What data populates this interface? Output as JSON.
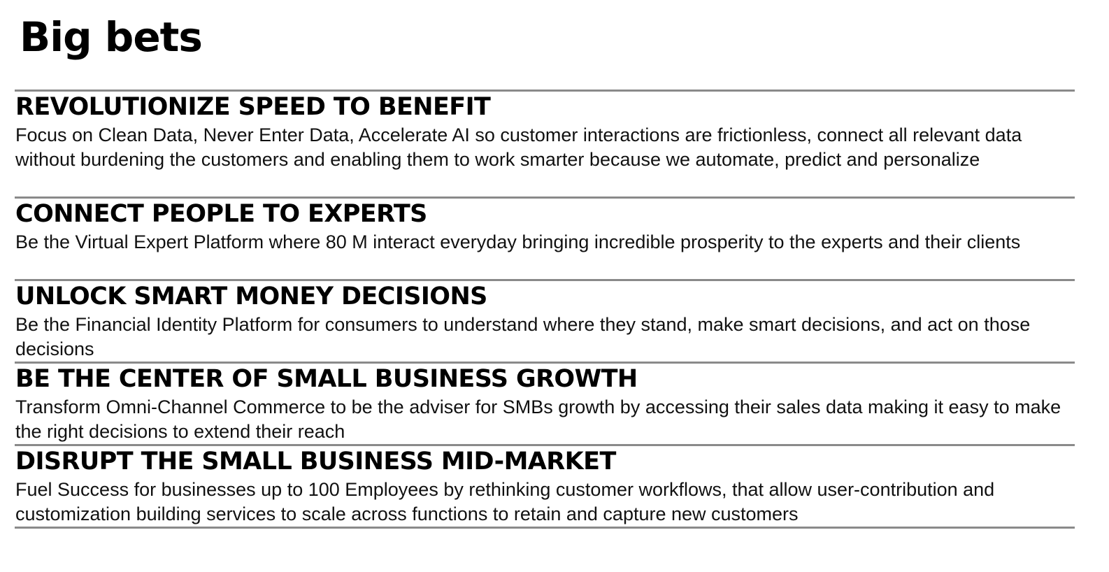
{
  "title": "Big bets",
  "bets": [
    {
      "heading": "REVOLUTIONIZE SPEED TO BENEFIT",
      "description": "Focus on Clean Data, Never Enter Data, Accelerate AI  so customer interactions are frictionless, connect all relevant data without burdening the customers and enabling them to work smarter because we automate, predict and personalize"
    },
    {
      "heading": "CONNECT PEOPLE TO EXPERTS",
      "description": "Be the Virtual Expert Platform where 80 M interact everyday bringing incredible prosperity to the experts and their clients"
    },
    {
      "heading": "UNLOCK SMART MONEY DECISIONS",
      "description": "Be the Financial Identity Platform for consumers to understand where they stand, make smart decisions, and act on those decisions"
    },
    {
      "heading": "BE THE CENTER OF SMALL BUSINESS GROWTH",
      "description": "Transform Omni-Channel Commerce to be the adviser for SMBs growth by accessing their sales data making it easy to make the right decisions to extend their reach"
    },
    {
      "heading": "DISRUPT THE SMALL BUSINESS MID-MARKET",
      "description": "Fuel Success for businesses up to 100 Employees by rethinking customer workflows, that allow user-contribution and customization building services to scale across functions to retain and capture new customers"
    }
  ]
}
